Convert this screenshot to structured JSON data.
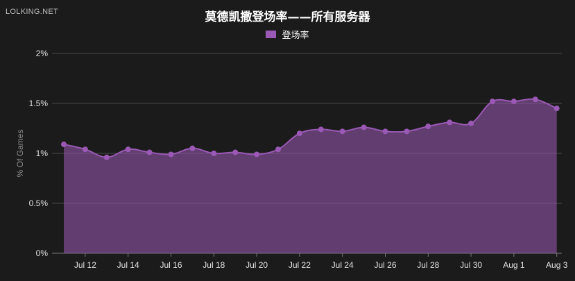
{
  "watermark": "LOLKING.NET",
  "chart_data": {
    "type": "area",
    "title": "莫德凯撒登场率——所有服务器",
    "ylabel": "% Of Games",
    "xlabel": "",
    "series": [
      {
        "name": "登场率",
        "color": "#9b59b6",
        "values": [
          1.09,
          1.04,
          0.96,
          1.04,
          1.01,
          0.99,
          1.05,
          1.0,
          1.01,
          0.99,
          1.04,
          1.2,
          1.24,
          1.22,
          1.26,
          1.22,
          1.22,
          1.27,
          1.31,
          1.3,
          1.52,
          1.52,
          1.54,
          1.45
        ]
      }
    ],
    "x": [
      "Jul 11",
      "Jul 12",
      "Jul 13",
      "Jul 14",
      "Jul 15",
      "Jul 16",
      "Jul 17",
      "Jul 18",
      "Jul 19",
      "Jul 20",
      "Jul 21",
      "Jul 22",
      "Jul 23",
      "Jul 24",
      "Jul 25",
      "Jul 26",
      "Jul 27",
      "Jul 28",
      "Jul 29",
      "Jul 30",
      "Jul 31",
      "Aug 1",
      "Aug 2",
      "Aug 3"
    ],
    "x_tick_labels": [
      "Jul 12",
      "Jul 14",
      "Jul 16",
      "Jul 18",
      "Jul 20",
      "Jul 22",
      "Jul 24",
      "Jul 26",
      "Jul 28",
      "Jul 30",
      "Aug 1",
      "Aug 3"
    ],
    "y_ticks": [
      0,
      0.5,
      1,
      1.5,
      2
    ],
    "y_tick_labels": [
      "0%",
      "0.5%",
      "1%",
      "1.5%",
      "2%"
    ],
    "ylim": [
      0,
      2
    ],
    "grid": true,
    "legend": "top-center"
  }
}
